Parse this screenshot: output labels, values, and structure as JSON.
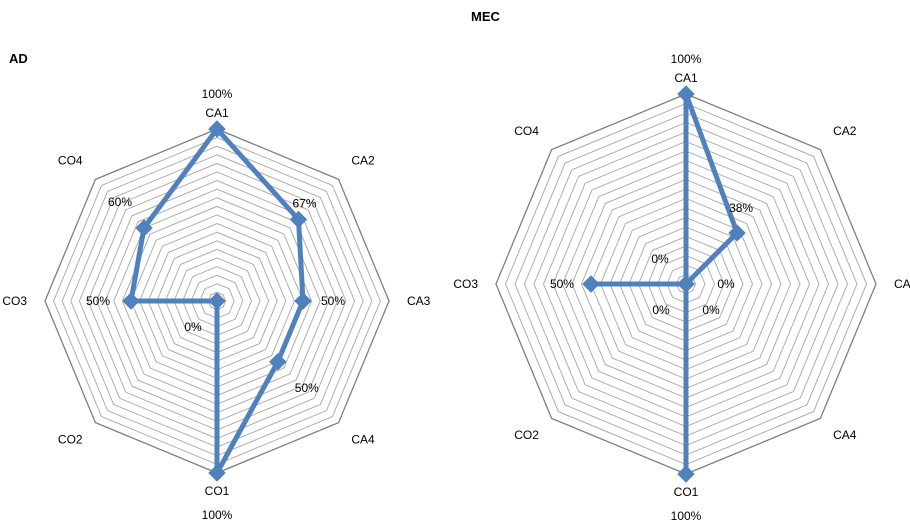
{
  "chart_data": [
    {
      "type": "radar",
      "title": "AD",
      "axes": [
        "CA1",
        "CA2",
        "CA3",
        "CA4",
        "CO1",
        "CO2",
        "CO3",
        "CO4"
      ],
      "values": [
        1.0,
        0.67,
        0.5,
        0.5,
        1.0,
        0.0,
        0.5,
        0.6
      ],
      "value_labels": [
        "100%",
        "67%",
        "50%",
        "50%",
        "100%",
        "0%",
        "50%",
        "60%"
      ],
      "range": [
        0,
        1
      ],
      "grid_rings": 20,
      "series_color": "#4F81BD",
      "grid_color": "#A6A6A6",
      "legend": "none"
    },
    {
      "type": "radar",
      "title": "MEC",
      "axes": [
        "CA1",
        "CA2",
        "CA3",
        "CA4",
        "CO1",
        "CO2",
        "CO3",
        "CO4"
      ],
      "values": [
        1.0,
        0.38,
        0.0,
        0.0,
        1.0,
        0.0,
        0.5,
        0.0
      ],
      "value_labels": [
        "100%",
        "38%",
        "0%",
        "0%",
        "100%",
        "0%",
        "50%",
        "0%"
      ],
      "range": [
        0,
        1
      ],
      "grid_rings": 20,
      "series_color": "#4F81BD",
      "grid_color": "#A6A6A6",
      "legend": "none"
    }
  ]
}
